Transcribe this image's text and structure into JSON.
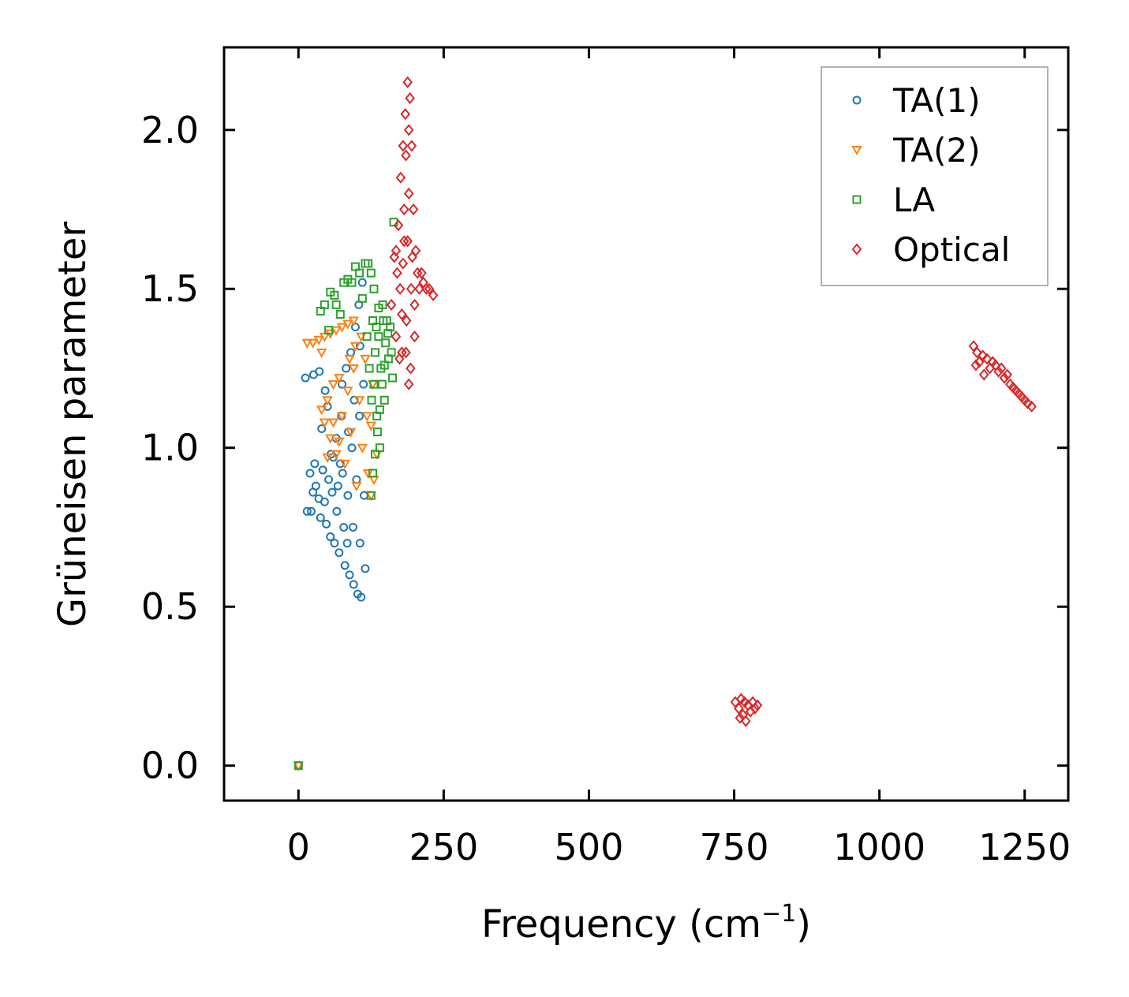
{
  "chart_data": {
    "type": "scatter",
    "title": "",
    "xlabel": "Frequency (cm",
    "xlabel_superscript": "−1",
    "xlabel_suffix": ")",
    "ylabel": "Grüneisen parameter",
    "xlim": [
      -128,
      1325
    ],
    "ylim": [
      -0.11,
      2.26
    ],
    "x_ticks": [
      0,
      250,
      500,
      750,
      1000,
      1250
    ],
    "x_tick_labels": [
      "0",
      "250",
      "500",
      "750",
      "1000",
      "1250"
    ],
    "y_ticks": [
      0.0,
      0.5,
      1.0,
      1.5,
      2.0
    ],
    "y_tick_labels": [
      "0.0",
      "0.5",
      "1.0",
      "1.5",
      "2.0"
    ],
    "grid": false,
    "legend_position": "top-right",
    "series": [
      {
        "name": "TA(1)",
        "marker": "circle",
        "color": "#1f77b4",
        "points": [
          [
            0,
            0.0
          ],
          [
            12,
            1.22
          ],
          [
            15,
            0.8
          ],
          [
            20,
            0.92
          ],
          [
            22,
            0.8
          ],
          [
            25,
            0.86
          ],
          [
            28,
            0.95
          ],
          [
            30,
            0.88
          ],
          [
            35,
            0.84
          ],
          [
            38,
            0.78
          ],
          [
            40,
            1.06
          ],
          [
            42,
            0.93
          ],
          [
            45,
            0.83
          ],
          [
            48,
            0.76
          ],
          [
            50,
            1.13
          ],
          [
            52,
            0.9
          ],
          [
            55,
            0.72
          ],
          [
            58,
            0.86
          ],
          [
            60,
            0.97
          ],
          [
            62,
            0.7
          ],
          [
            65,
            1.03
          ],
          [
            68,
            0.88
          ],
          [
            70,
            0.67
          ],
          [
            72,
            0.95
          ],
          [
            75,
            1.2
          ],
          [
            78,
            0.75
          ],
          [
            80,
            0.63
          ],
          [
            82,
            1.25
          ],
          [
            85,
            0.85
          ],
          [
            88,
            0.6
          ],
          [
            90,
            1.3
          ],
          [
            92,
            1.0
          ],
          [
            95,
            0.57
          ],
          [
            98,
            1.38
          ],
          [
            100,
            0.9
          ],
          [
            102,
            0.54
          ],
          [
            104,
            1.45
          ],
          [
            105,
            1.1
          ],
          [
            106,
            0.7
          ],
          [
            108,
            0.53
          ],
          [
            110,
            1.52
          ],
          [
            112,
            1.2
          ],
          [
            113,
            0.85
          ],
          [
            115,
            0.62
          ],
          [
            96,
            1.15
          ],
          [
            86,
            1.05
          ],
          [
            76,
            0.92
          ],
          [
            66,
            0.8
          ],
          [
            56,
            0.98
          ],
          [
            46,
            1.18
          ],
          [
            36,
            1.24
          ],
          [
            26,
            1.23
          ],
          [
            106,
            1.32
          ],
          [
            94,
            0.75
          ],
          [
            84,
            0.7
          ],
          [
            74,
            1.1
          ]
        ]
      },
      {
        "name": "TA(2)",
        "marker": "triangle-down",
        "color": "#ff7f0e",
        "points": [
          [
            0,
            0.0
          ],
          [
            15,
            1.33
          ],
          [
            25,
            1.33
          ],
          [
            35,
            1.34
          ],
          [
            45,
            1.35
          ],
          [
            55,
            1.36
          ],
          [
            65,
            1.37
          ],
          [
            75,
            1.38
          ],
          [
            85,
            1.39
          ],
          [
            95,
            1.4
          ],
          [
            40,
            1.12
          ],
          [
            45,
            1.08
          ],
          [
            50,
            1.15
          ],
          [
            55,
            1.03
          ],
          [
            60,
            1.2
          ],
          [
            65,
            0.98
          ],
          [
            70,
            1.22
          ],
          [
            75,
            1.1
          ],
          [
            80,
            0.95
          ],
          [
            85,
            1.18
          ],
          [
            90,
            1.05
          ],
          [
            95,
            1.25
          ],
          [
            100,
            0.88
          ],
          [
            105,
            1.15
          ],
          [
            110,
            1.0
          ],
          [
            115,
            1.28
          ],
          [
            120,
            0.92
          ],
          [
            125,
            1.07
          ],
          [
            130,
            0.9
          ],
          [
            135,
            0.98
          ],
          [
            125,
            0.85
          ],
          [
            60,
            1.08
          ],
          [
            70,
            1.02
          ],
          [
            88,
            1.28
          ],
          [
            98,
            1.32
          ],
          [
            108,
            1.35
          ],
          [
            118,
            1.1
          ],
          [
            128,
            1.2
          ],
          [
            50,
            0.97
          ],
          [
            40,
            1.3
          ]
        ]
      },
      {
        "name": "LA",
        "marker": "square",
        "color": "#2ca02c",
        "points": [
          [
            0,
            0.0
          ],
          [
            38,
            1.43
          ],
          [
            45,
            1.45
          ],
          [
            52,
            1.37
          ],
          [
            55,
            1.49
          ],
          [
            62,
            1.48
          ],
          [
            65,
            1.45
          ],
          [
            72,
            1.42
          ],
          [
            78,
            1.52
          ],
          [
            85,
            1.53
          ],
          [
            92,
            1.52
          ],
          [
            98,
            1.57
          ],
          [
            105,
            1.55
          ],
          [
            110,
            1.47
          ],
          [
            115,
            1.58
          ],
          [
            120,
            1.58
          ],
          [
            125,
            1.55
          ],
          [
            128,
            1.4
          ],
          [
            130,
            1.2
          ],
          [
            132,
            1.3
          ],
          [
            135,
            1.1
          ],
          [
            138,
            1.35
          ],
          [
            140,
            1.0
          ],
          [
            142,
            1.25
          ],
          [
            145,
            1.45
          ],
          [
            148,
            1.15
          ],
          [
            150,
            1.33
          ],
          [
            152,
            1.4
          ],
          [
            155,
            1.28
          ],
          [
            158,
            1.38
          ],
          [
            160,
            1.3
          ],
          [
            162,
            1.22
          ],
          [
            164,
            1.71
          ],
          [
            125,
            0.85
          ],
          [
            128,
            0.92
          ],
          [
            132,
            0.98
          ],
          [
            136,
            1.05
          ],
          [
            140,
            1.12
          ],
          [
            144,
            1.2
          ],
          [
            148,
            1.26
          ],
          [
            118,
            1.35
          ],
          [
            122,
            1.25
          ],
          [
            126,
            1.15
          ],
          [
            134,
            1.38
          ],
          [
            154,
            1.36
          ],
          [
            146,
            1.4
          ],
          [
            138,
            1.44
          ],
          [
            130,
            1.5
          ]
        ]
      },
      {
        "name": "Optical",
        "marker": "diamond",
        "color": "#d62728",
        "points": [
          [
            160,
            1.45
          ],
          [
            165,
            1.6
          ],
          [
            168,
            1.35
          ],
          [
            170,
            1.55
          ],
          [
            172,
            1.7
          ],
          [
            175,
            1.5
          ],
          [
            176,
            1.85
          ],
          [
            178,
            1.3
          ],
          [
            180,
            1.95
          ],
          [
            182,
            1.65
          ],
          [
            184,
            2.05
          ],
          [
            186,
            1.4
          ],
          [
            188,
            2.15
          ],
          [
            190,
            1.8
          ],
          [
            192,
            2.1
          ],
          [
            193,
            1.25
          ],
          [
            195,
            1.95
          ],
          [
            196,
            1.6
          ],
          [
            198,
            1.75
          ],
          [
            200,
            1.45
          ],
          [
            202,
            1.62
          ],
          [
            205,
            1.55
          ],
          [
            208,
            1.5
          ],
          [
            212,
            1.55
          ],
          [
            215,
            1.52
          ],
          [
            220,
            1.5
          ],
          [
            225,
            1.5
          ],
          [
            232,
            1.48
          ],
          [
            185,
            1.3
          ],
          [
            190,
            1.2
          ],
          [
            178,
            1.42
          ],
          [
            174,
            1.28
          ],
          [
            194,
            1.5
          ],
          [
            188,
            1.65
          ],
          [
            182,
            1.75
          ],
          [
            200,
            1.35
          ],
          [
            168,
            1.62
          ],
          [
            185,
            1.92
          ],
          [
            190,
            2.0
          ],
          [
            180,
            1.58
          ],
          [
            752,
            0.2
          ],
          [
            758,
            0.18
          ],
          [
            762,
            0.21
          ],
          [
            765,
            0.16
          ],
          [
            770,
            0.14
          ],
          [
            774,
            0.19
          ],
          [
            778,
            0.17
          ],
          [
            782,
            0.2
          ],
          [
            786,
            0.18
          ],
          [
            790,
            0.19
          ],
          [
            768,
            0.2
          ],
          [
            760,
            0.15
          ],
          [
            1162,
            1.32
          ],
          [
            1168,
            1.3
          ],
          [
            1172,
            1.27
          ],
          [
            1178,
            1.29
          ],
          [
            1185,
            1.28
          ],
          [
            1190,
            1.25
          ],
          [
            1195,
            1.27
          ],
          [
            1200,
            1.26
          ],
          [
            1205,
            1.24
          ],
          [
            1210,
            1.25
          ],
          [
            1215,
            1.22
          ],
          [
            1220,
            1.23
          ],
          [
            1225,
            1.2
          ],
          [
            1230,
            1.19
          ],
          [
            1235,
            1.18
          ],
          [
            1240,
            1.17
          ],
          [
            1245,
            1.16
          ],
          [
            1250,
            1.15
          ],
          [
            1255,
            1.14
          ],
          [
            1262,
            1.13
          ],
          [
            1180,
            1.23
          ],
          [
            1166,
            1.26
          ]
        ]
      }
    ]
  }
}
